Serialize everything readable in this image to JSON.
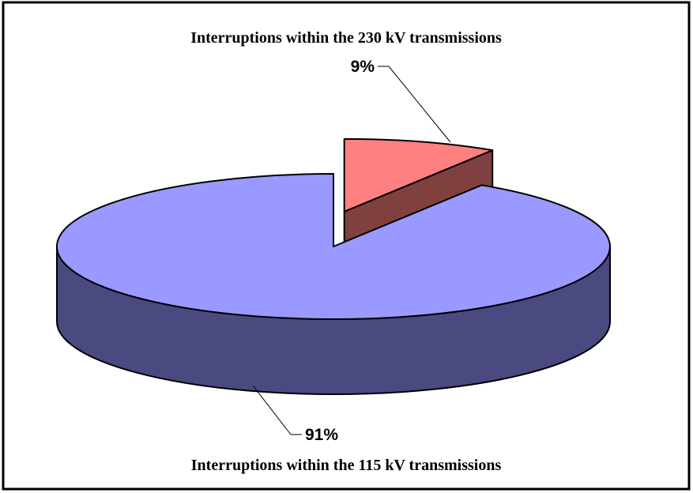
{
  "chart_data": {
    "type": "pie3d",
    "categories": [
      "Interruptions within the 230 kV transmissions",
      "Interruptions within the 115 kV transmissions"
    ],
    "values": [
      9,
      91
    ],
    "value_labels": [
      "9%",
      "91%"
    ],
    "colors": [
      "#ff8080",
      "#9999ff"
    ],
    "side_colors": [
      "#804040",
      "#4a4a80"
    ]
  }
}
